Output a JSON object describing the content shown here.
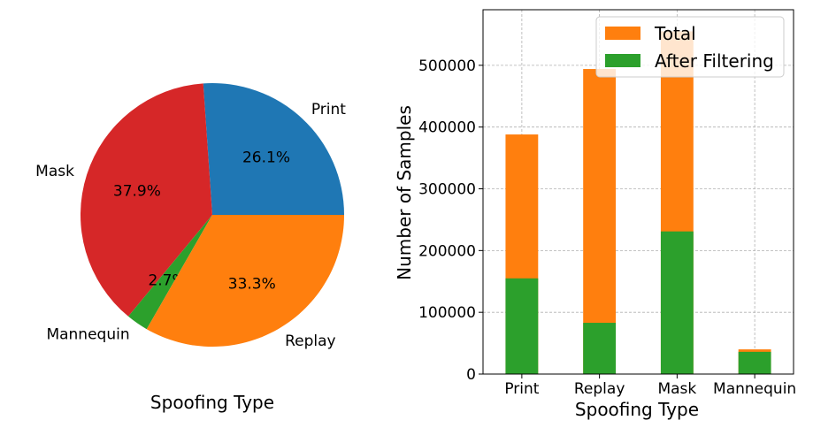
{
  "chart_data": [
    {
      "type": "pie",
      "xlabel": "Spoofing Type",
      "labels": [
        "Print",
        "Mask",
        "Mannequin",
        "Replay"
      ],
      "values": [
        26.1,
        37.9,
        2.7,
        33.3
      ],
      "pct_labels": [
        "26.1%",
        "37.9%",
        "2.7%",
        "33.3%"
      ],
      "colors": [
        "#1f77b4",
        "#d62728",
        "#2ca02c",
        "#ff7f0e"
      ],
      "start_angle_deg": 0,
      "direction": "counterclockwise"
    },
    {
      "type": "bar",
      "stacked_overlay": true,
      "categories": [
        "Print",
        "Replay",
        "Mask",
        "Mannequin"
      ],
      "series": [
        {
          "name": "Total",
          "color": "#ff7f0e",
          "values": [
            388000,
            494000,
            555000,
            40000
          ]
        },
        {
          "name": "After Filtering",
          "color": "#2ca02c",
          "values": [
            155000,
            83000,
            231000,
            36000
          ]
        }
      ],
      "xlabel": "Spoofing Type",
      "ylabel": "Number of Samples",
      "ylim": [
        0,
        590000
      ],
      "yticks": [
        0,
        100000,
        200000,
        300000,
        400000,
        500000
      ],
      "ytick_labels": [
        "0",
        "100000",
        "200000",
        "300000",
        "400000",
        "500000"
      ],
      "grid": true,
      "legend_position": "top-right"
    }
  ]
}
